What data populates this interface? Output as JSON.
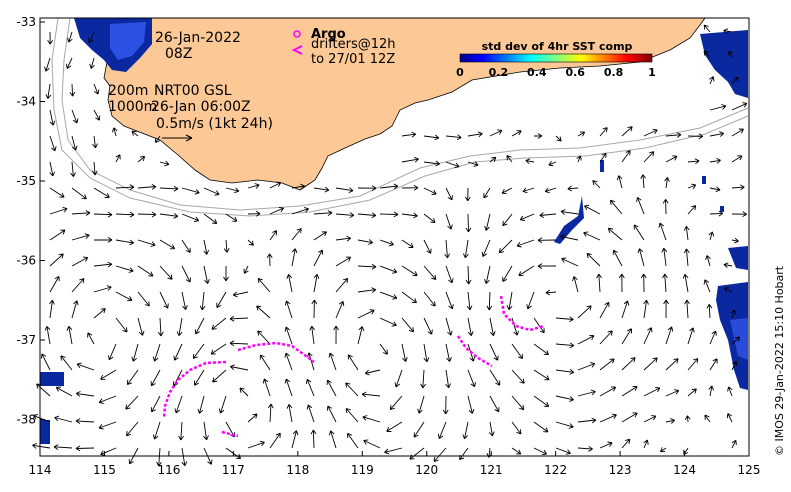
{
  "map": {
    "date_line": "26-Jan-2022",
    "time_line": "08Z",
    "depth_contour_1": "200m",
    "depth_contour_2": "1000m",
    "product_label": "NRT00 GSL",
    "product_time": "26-Jan 06:00Z",
    "scale_label": "0.5m/s (1kt 24h)",
    "argo_label": "Argo",
    "drifters_label": "drifters@12h",
    "drifters_until": "to 27/01 12Z",
    "colorbar_title": "std dev of 4hr SST comp",
    "colorbar_ticks": [
      "0",
      "0.2",
      "0.4",
      "0.6",
      "0.8",
      "1"
    ],
    "credit": "© IMOS 29-Jan-2022 15:10 Hobart",
    "lon_ticks": [
      "114",
      "115",
      "116",
      "117",
      "118",
      "119",
      "120",
      "121",
      "122",
      "123",
      "124",
      "125"
    ],
    "lat_ticks": [
      "-33",
      "-34",
      "-35",
      "-36",
      "-37",
      "-38"
    ],
    "colors": {
      "land": "#fcc896",
      "drifter": "#ff00ff",
      "sst_high_std": "#0a28a0",
      "sst_low_std": "#3c64ff",
      "arrow": "#000000"
    }
  }
}
